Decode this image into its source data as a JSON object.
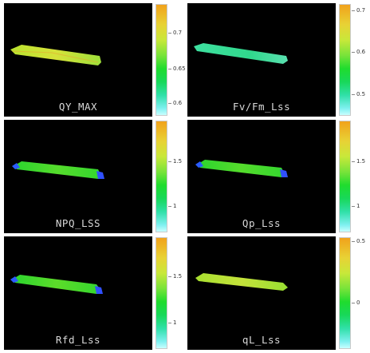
{
  "panels": [
    {
      "label": "QY_MAX",
      "ticks": [
        {
          "v": "0.7"
        },
        {
          "v": "0.65"
        },
        {
          "v": "0.6"
        }
      ]
    },
    {
      "label": "Fv/Fm_Lss",
      "ticks": [
        {
          "v": "0.7"
        },
        {
          "v": "0.6"
        },
        {
          "v": "0.5"
        }
      ]
    },
    {
      "label": "NPQ_LSS",
      "ticks": [
        {
          "v": "1.5"
        },
        {
          "v": "1"
        }
      ]
    },
    {
      "label": "Qp_Lss",
      "ticks": [
        {
          "v": "1.5"
        },
        {
          "v": "1"
        }
      ]
    },
    {
      "label": "Rfd_Lss",
      "ticks": [
        {
          "v": "1.5"
        },
        {
          "v": "1"
        }
      ]
    },
    {
      "label": "qL_Lss",
      "ticks": [
        {
          "v": "0.5"
        },
        {
          "v": "0"
        }
      ]
    }
  ]
}
